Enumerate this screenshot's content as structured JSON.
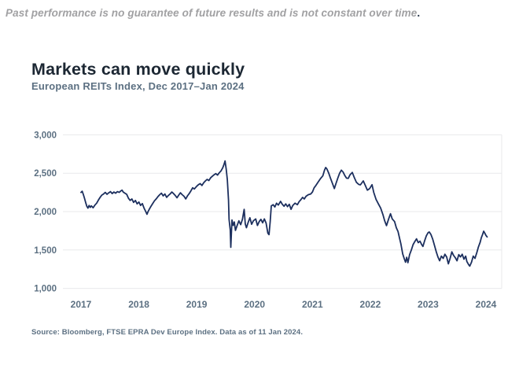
{
  "page": {
    "disclaimer": "Past performance is no guarantee of future results and is not constant over time",
    "disclaimer_period": ".",
    "title": "Markets can move quickly",
    "subtitle": "European REITs Index, Dec 2017–Jan 2024",
    "source": "Source: Bloomberg, FTSE EPRA Dev Europe Index. Data as of 11 Jan 2024."
  },
  "colors": {
    "line": "#1c2f5e",
    "title_text": "#1c2733",
    "secondary_text": "#5c7082",
    "disclaimer_text": "#a1a1a3",
    "grid": "#e8e9eb",
    "background": "#ffffff"
  },
  "chart_data": {
    "type": "line",
    "title": "Markets can move quickly",
    "subtitle": "European REITs Index, Dec 2017–Jan 2024",
    "xlabel": "",
    "ylabel": "",
    "xlim": [
      2017,
      2024.05
    ],
    "ylim": [
      1000,
      3000
    ],
    "grid": "horizontal-only",
    "legend": "none",
    "yticks": {
      "values": [
        3000,
        2500,
        2000,
        1500,
        1000
      ],
      "labels": [
        "3,000",
        "2,500",
        "2,000",
        "1,500",
        "1,000"
      ]
    },
    "xticks": {
      "values": [
        2017,
        2018,
        2019,
        2020,
        2021,
        2022,
        2023,
        2024
      ],
      "labels": [
        "2017",
        "2018",
        "2019",
        "2020",
        "2021",
        "2022",
        "2023",
        "2024"
      ]
    },
    "series": [
      {
        "name": "European REITs Index",
        "color": "#1c2f5e",
        "points": [
          [
            2017.0,
            2250
          ],
          [
            2017.02,
            2265
          ],
          [
            2017.04,
            2225
          ],
          [
            2017.06,
            2175
          ],
          [
            2017.08,
            2120
          ],
          [
            2017.1,
            2070
          ],
          [
            2017.12,
            2045
          ],
          [
            2017.14,
            2080
          ],
          [
            2017.16,
            2055
          ],
          [
            2017.18,
            2075
          ],
          [
            2017.21,
            2050
          ],
          [
            2017.24,
            2085
          ],
          [
            2017.27,
            2110
          ],
          [
            2017.3,
            2150
          ],
          [
            2017.33,
            2185
          ],
          [
            2017.36,
            2215
          ],
          [
            2017.39,
            2230
          ],
          [
            2017.42,
            2250
          ],
          [
            2017.45,
            2225
          ],
          [
            2017.48,
            2245
          ],
          [
            2017.51,
            2260
          ],
          [
            2017.54,
            2235
          ],
          [
            2017.57,
            2255
          ],
          [
            2017.6,
            2240
          ],
          [
            2017.63,
            2260
          ],
          [
            2017.66,
            2250
          ],
          [
            2017.69,
            2270
          ],
          [
            2017.71,
            2280
          ],
          [
            2017.73,
            2255
          ],
          [
            2017.76,
            2240
          ],
          [
            2017.79,
            2225
          ],
          [
            2017.82,
            2175
          ],
          [
            2017.85,
            2145
          ],
          [
            2017.88,
            2165
          ],
          [
            2017.91,
            2120
          ],
          [
            2017.94,
            2145
          ],
          [
            2017.97,
            2100
          ],
          [
            2018.0,
            2125
          ],
          [
            2018.03,
            2080
          ],
          [
            2018.06,
            2105
          ],
          [
            2018.09,
            2045
          ],
          [
            2018.12,
            2000
          ],
          [
            2018.14,
            1965
          ],
          [
            2018.16,
            2000
          ],
          [
            2018.18,
            2030
          ],
          [
            2018.21,
            2070
          ],
          [
            2018.24,
            2105
          ],
          [
            2018.27,
            2140
          ],
          [
            2018.3,
            2165
          ],
          [
            2018.33,
            2195
          ],
          [
            2018.36,
            2220
          ],
          [
            2018.39,
            2240
          ],
          [
            2018.42,
            2205
          ],
          [
            2018.45,
            2230
          ],
          [
            2018.48,
            2185
          ],
          [
            2018.51,
            2210
          ],
          [
            2018.54,
            2230
          ],
          [
            2018.57,
            2255
          ],
          [
            2018.6,
            2235
          ],
          [
            2018.63,
            2210
          ],
          [
            2018.66,
            2180
          ],
          [
            2018.69,
            2215
          ],
          [
            2018.72,
            2245
          ],
          [
            2018.75,
            2220
          ],
          [
            2018.78,
            2200
          ],
          [
            2018.81,
            2165
          ],
          [
            2018.84,
            2205
          ],
          [
            2018.87,
            2235
          ],
          [
            2018.9,
            2270
          ],
          [
            2018.93,
            2310
          ],
          [
            2018.96,
            2295
          ],
          [
            2019.0,
            2330
          ],
          [
            2019.03,
            2350
          ],
          [
            2019.06,
            2365
          ],
          [
            2019.09,
            2340
          ],
          [
            2019.12,
            2375
          ],
          [
            2019.15,
            2400
          ],
          [
            2019.18,
            2420
          ],
          [
            2019.21,
            2405
          ],
          [
            2019.24,
            2440
          ],
          [
            2019.27,
            2460
          ],
          [
            2019.3,
            2480
          ],
          [
            2019.33,
            2495
          ],
          [
            2019.36,
            2475
          ],
          [
            2019.39,
            2505
          ],
          [
            2019.42,
            2530
          ],
          [
            2019.45,
            2570
          ],
          [
            2019.47,
            2610
          ],
          [
            2019.49,
            2660
          ],
          [
            2019.51,
            2550
          ],
          [
            2019.53,
            2415
          ],
          [
            2019.55,
            2150
          ],
          [
            2019.56,
            1900
          ],
          [
            2019.58,
            1760
          ],
          [
            2019.59,
            1535
          ],
          [
            2019.61,
            1890
          ],
          [
            2019.63,
            1820
          ],
          [
            2019.65,
            1865
          ],
          [
            2019.67,
            1755
          ],
          [
            2019.7,
            1820
          ],
          [
            2019.73,
            1880
          ],
          [
            2019.76,
            1830
          ],
          [
            2019.79,
            1900
          ],
          [
            2019.82,
            2030
          ],
          [
            2019.84,
            1840
          ],
          [
            2019.86,
            1790
          ],
          [
            2019.89,
            1860
          ],
          [
            2019.92,
            1920
          ],
          [
            2019.95,
            1835
          ],
          [
            2019.98,
            1880
          ],
          [
            2020.02,
            1905
          ],
          [
            2020.05,
            1820
          ],
          [
            2020.08,
            1870
          ],
          [
            2020.11,
            1900
          ],
          [
            2020.14,
            1855
          ],
          [
            2020.17,
            1905
          ],
          [
            2020.2,
            1850
          ],
          [
            2020.23,
            1720
          ],
          [
            2020.25,
            1700
          ],
          [
            2020.27,
            1870
          ],
          [
            2020.29,
            2075
          ],
          [
            2020.32,
            2090
          ],
          [
            2020.35,
            2060
          ],
          [
            2020.38,
            2110
          ],
          [
            2020.41,
            2085
          ],
          [
            2020.45,
            2133
          ],
          [
            2020.48,
            2095
          ],
          [
            2020.51,
            2070
          ],
          [
            2020.54,
            2100
          ],
          [
            2020.57,
            2065
          ],
          [
            2020.6,
            2095
          ],
          [
            2020.63,
            2030
          ],
          [
            2020.66,
            2080
          ],
          [
            2020.7,
            2110
          ],
          [
            2020.74,
            2090
          ],
          [
            2020.77,
            2130
          ],
          [
            2020.8,
            2155
          ],
          [
            2020.83,
            2185
          ],
          [
            2020.86,
            2165
          ],
          [
            2020.89,
            2200
          ],
          [
            2020.93,
            2220
          ],
          [
            2020.97,
            2230
          ],
          [
            2021.0,
            2255
          ],
          [
            2021.03,
            2310
          ],
          [
            2021.06,
            2340
          ],
          [
            2021.1,
            2385
          ],
          [
            2021.14,
            2430
          ],
          [
            2021.18,
            2465
          ],
          [
            2021.21,
            2540
          ],
          [
            2021.23,
            2575
          ],
          [
            2021.25,
            2555
          ],
          [
            2021.28,
            2505
          ],
          [
            2021.31,
            2440
          ],
          [
            2021.34,
            2380
          ],
          [
            2021.38,
            2300
          ],
          [
            2021.41,
            2370
          ],
          [
            2021.44,
            2440
          ],
          [
            2021.47,
            2500
          ],
          [
            2021.5,
            2540
          ],
          [
            2021.53,
            2515
          ],
          [
            2021.56,
            2470
          ],
          [
            2021.59,
            2435
          ],
          [
            2021.62,
            2433
          ],
          [
            2021.65,
            2480
          ],
          [
            2021.69,
            2510
          ],
          [
            2021.72,
            2450
          ],
          [
            2021.76,
            2382
          ],
          [
            2021.8,
            2355
          ],
          [
            2021.83,
            2348
          ],
          [
            2021.86,
            2380
          ],
          [
            2021.88,
            2400
          ],
          [
            2021.92,
            2330
          ],
          [
            2021.95,
            2280
          ],
          [
            2021.99,
            2300
          ],
          [
            2022.03,
            2350
          ],
          [
            2022.06,
            2250
          ],
          [
            2022.1,
            2160
          ],
          [
            2022.14,
            2100
          ],
          [
            2022.18,
            2045
          ],
          [
            2022.22,
            1960
          ],
          [
            2022.25,
            1880
          ],
          [
            2022.28,
            1818
          ],
          [
            2022.32,
            1910
          ],
          [
            2022.35,
            1972
          ],
          [
            2022.38,
            1905
          ],
          [
            2022.42,
            1870
          ],
          [
            2022.45,
            1790
          ],
          [
            2022.48,
            1740
          ],
          [
            2022.51,
            1640
          ],
          [
            2022.53,
            1580
          ],
          [
            2022.56,
            1450
          ],
          [
            2022.59,
            1380
          ],
          [
            2022.61,
            1341
          ],
          [
            2022.63,
            1405
          ],
          [
            2022.65,
            1335
          ],
          [
            2022.68,
            1440
          ],
          [
            2022.71,
            1500
          ],
          [
            2022.74,
            1570
          ],
          [
            2022.77,
            1610
          ],
          [
            2022.8,
            1645
          ],
          [
            2022.83,
            1595
          ],
          [
            2022.86,
            1615
          ],
          [
            2022.89,
            1570
          ],
          [
            2022.91,
            1546
          ],
          [
            2022.94,
            1620
          ],
          [
            2022.97,
            1685
          ],
          [
            2023.0,
            1725
          ],
          [
            2023.02,
            1735
          ],
          [
            2023.05,
            1700
          ],
          [
            2023.08,
            1640
          ],
          [
            2023.11,
            1560
          ],
          [
            2023.14,
            1480
          ],
          [
            2023.17,
            1410
          ],
          [
            2023.2,
            1360
          ],
          [
            2023.23,
            1420
          ],
          [
            2023.26,
            1390
          ],
          [
            2023.29,
            1445
          ],
          [
            2023.32,
            1410
          ],
          [
            2023.35,
            1320
          ],
          [
            2023.38,
            1390
          ],
          [
            2023.41,
            1475
          ],
          [
            2023.44,
            1430
          ],
          [
            2023.47,
            1400
          ],
          [
            2023.5,
            1360
          ],
          [
            2023.53,
            1440
          ],
          [
            2023.56,
            1410
          ],
          [
            2023.59,
            1445
          ],
          [
            2023.62,
            1380
          ],
          [
            2023.65,
            1420
          ],
          [
            2023.67,
            1350
          ],
          [
            2023.7,
            1310
          ],
          [
            2023.72,
            1290
          ],
          [
            2023.75,
            1340
          ],
          [
            2023.78,
            1420
          ],
          [
            2023.81,
            1390
          ],
          [
            2023.84,
            1460
          ],
          [
            2023.87,
            1540
          ],
          [
            2023.9,
            1600
          ],
          [
            2023.92,
            1660
          ],
          [
            2023.94,
            1700
          ],
          [
            2023.96,
            1745
          ],
          [
            2023.98,
            1720
          ],
          [
            2024.0,
            1690
          ],
          [
            2024.02,
            1670
          ]
        ]
      }
    ]
  }
}
